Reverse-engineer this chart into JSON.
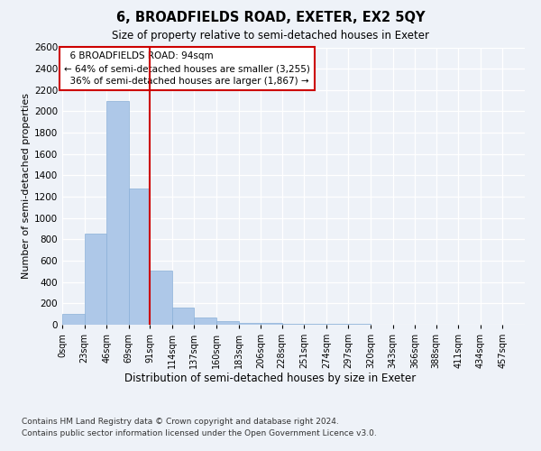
{
  "title": "6, BROADFIELDS ROAD, EXETER, EX2 5QY",
  "subtitle": "Size of property relative to semi-detached houses in Exeter",
  "xlabel": "Distribution of semi-detached houses by size in Exeter",
  "ylabel": "Number of semi-detached properties",
  "property_label": "6 BROADFIELDS ROAD: 94sqm",
  "pct_smaller": 64,
  "pct_larger": 36,
  "n_smaller": 3255,
  "n_larger": 1867,
  "bin_labels": [
    "0sqm",
    "23sqm",
    "46sqm",
    "69sqm",
    "91sqm",
    "114sqm",
    "137sqm",
    "160sqm",
    "183sqm",
    "206sqm",
    "228sqm",
    "251sqm",
    "274sqm",
    "297sqm",
    "320sqm",
    "343sqm",
    "366sqm",
    "388sqm",
    "411sqm",
    "434sqm",
    "457sqm"
  ],
  "bar_values": [
    100,
    850,
    2100,
    1280,
    510,
    160,
    65,
    30,
    20,
    15,
    10,
    8,
    6,
    5,
    4,
    3,
    2,
    2,
    2,
    1,
    1
  ],
  "bin_edges": [
    0,
    23,
    46,
    69,
    91,
    114,
    137,
    160,
    183,
    206,
    228,
    251,
    274,
    297,
    320,
    343,
    366,
    388,
    411,
    434,
    457
  ],
  "bar_color": "#aec8e8",
  "bar_edge_color": "#8ab0d8",
  "vline_x": 91,
  "vline_color": "#cc0000",
  "annotation_box_color": "#cc0000",
  "bg_color": "#eef2f8",
  "plot_bg_color": "#eef2f8",
  "ylim": [
    0,
    2600
  ],
  "yticks": [
    0,
    200,
    400,
    600,
    800,
    1000,
    1200,
    1400,
    1600,
    1800,
    2000,
    2200,
    2400,
    2600
  ],
  "footer_line1": "Contains HM Land Registry data © Crown copyright and database right 2024.",
  "footer_line2": "Contains public sector information licensed under the Open Government Licence v3.0."
}
